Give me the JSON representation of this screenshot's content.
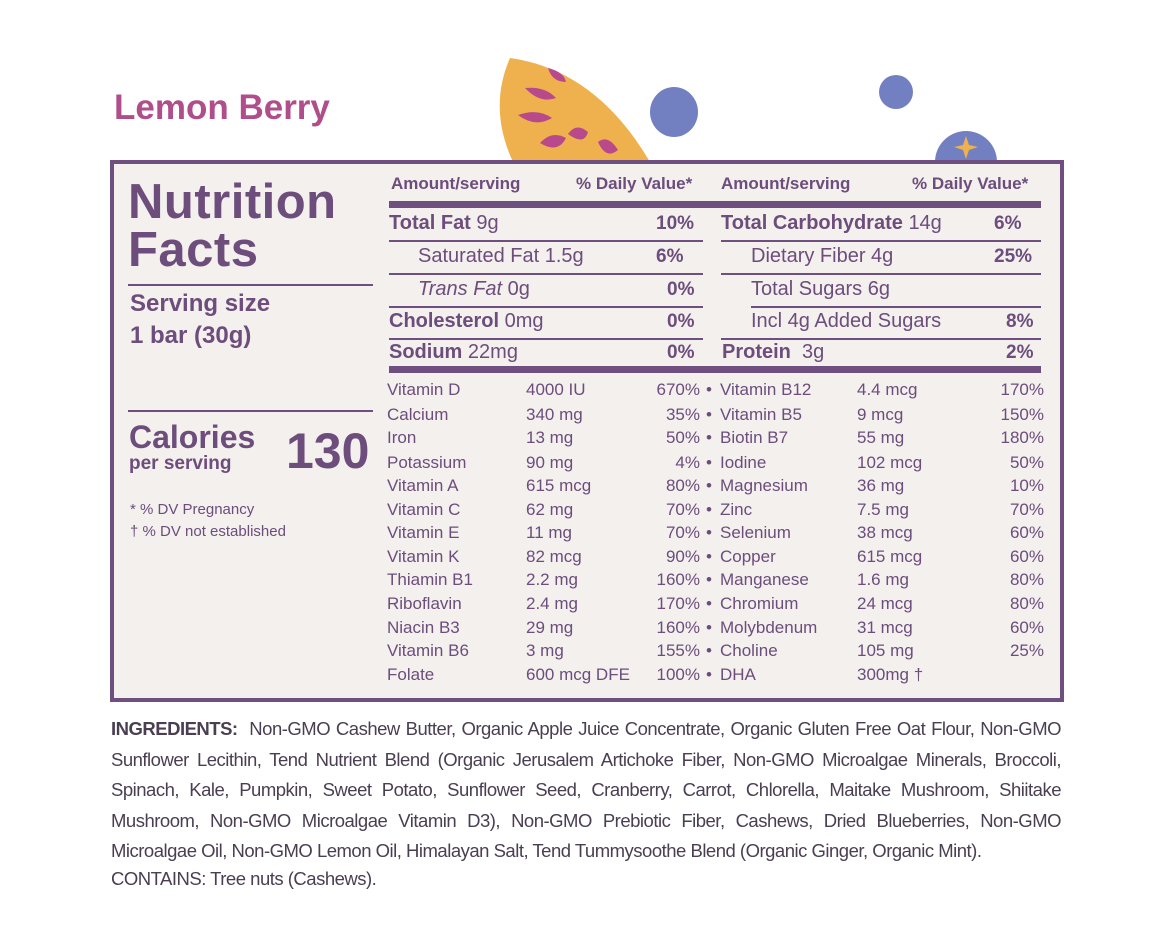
{
  "product_name": "Lemon Berry",
  "colors": {
    "accent": "#b04e8c",
    "frame": "#6f4f7f",
    "panel_bg": "#f3f0ee",
    "lemon": "#eeb14d",
    "berry": "#7280c2"
  },
  "label": {
    "title_line1": "Nutrition",
    "title_line2": "Facts",
    "serving_label": "Serving size",
    "serving_value": "1 bar (30g)",
    "calories_label": "Calories",
    "calories_sub": "per serving",
    "calories_value": "130",
    "notes": [
      "*  % DV Pregnancy",
      "†  % DV not established"
    ]
  },
  "columns": {
    "left_header_amount": "Amount/serving",
    "left_header_dv": "% Daily Value*",
    "right_header_amount": "Amount/serving",
    "right_header_dv": "% Daily Value*"
  },
  "nutrients_left": [
    {
      "name": "Total Fat",
      "amount": "9g",
      "dv": "10%"
    },
    {
      "name": "Saturated Fat",
      "amount": "1.5g",
      "dv": "6%"
    },
    {
      "name": "Trans Fat",
      "amount": "0g",
      "dv": "0%"
    },
    {
      "name": "Cholesterol",
      "amount": "0mg",
      "dv": "0%"
    },
    {
      "name": "Sodium",
      "amount": "22mg",
      "dv": "0%"
    }
  ],
  "nutrients_right": [
    {
      "name": "Total Carbohydrate",
      "amount": "14g",
      "dv": "6%"
    },
    {
      "name": "Dietary Fiber",
      "amount": "4g",
      "dv": "25%"
    },
    {
      "name": "Total Sugars",
      "amount": "6g",
      "dv": ""
    },
    {
      "name": "Incl 4g Added Sugars",
      "amount": "",
      "dv": "8%"
    },
    {
      "name": "Protein",
      "amount": "3g",
      "dv": "2%"
    }
  ],
  "vitamins_left": [
    {
      "name": "Vitamin D",
      "amount": "4000 IU",
      "dv": "670%"
    },
    {
      "name": "Calcium",
      "amount": "340 mg",
      "dv": "35%"
    },
    {
      "name": "Iron",
      "amount": "13 mg",
      "dv": "50%"
    },
    {
      "name": "Potassium",
      "amount": "90 mg",
      "dv": "4%"
    },
    {
      "name": "Vitamin A",
      "amount": "615 mcg",
      "dv": "80%"
    },
    {
      "name": "Vitamin C",
      "amount": "62 mg",
      "dv": "70%"
    },
    {
      "name": "Vitamin E",
      "amount": "11 mg",
      "dv": "70%"
    },
    {
      "name": "Vitamin K",
      "amount": "82 mcg",
      "dv": "90%"
    },
    {
      "name": "Thiamin B1",
      "amount": "2.2 mg",
      "dv": "160%"
    },
    {
      "name": "Riboflavin",
      "amount": "2.4 mg",
      "dv": "170%"
    },
    {
      "name": "Niacin B3",
      "amount": "29 mg",
      "dv": "160%"
    },
    {
      "name": "Vitamin B6",
      "amount": "3 mg",
      "dv": "155%"
    },
    {
      "name": "Folate",
      "amount": "600 mcg DFE",
      "dv": "100%"
    }
  ],
  "vitamins_right": [
    {
      "name": "Vitamin B12",
      "amount": "4.4 mcg",
      "dv": "170%"
    },
    {
      "name": "Vitamin  B5",
      "amount": "9 mcg",
      "dv": "150%"
    },
    {
      "name": "Biotin B7",
      "amount": "55 mg",
      "dv": "180%"
    },
    {
      "name": "Iodine",
      "amount": "102 mcg",
      "dv": "50%"
    },
    {
      "name": "Magnesium",
      "amount": "36 mg",
      "dv": "10%"
    },
    {
      "name": "Zinc",
      "amount": "7.5 mg",
      "dv": "70%"
    },
    {
      "name": "Selenium",
      "amount": "38 mcg",
      "dv": "60%"
    },
    {
      "name": "Copper",
      "amount": "615 mcg",
      "dv": "60%"
    },
    {
      "name": "Manganese",
      "amount": "1.6 mg",
      "dv": "80%"
    },
    {
      "name": "Chromium",
      "amount": "24 mcg",
      "dv": "80%"
    },
    {
      "name": "Molybdenum",
      "amount": "31 mcg",
      "dv": "60%"
    },
    {
      "name": "Choline",
      "amount": "105 mg",
      "dv": "25%"
    },
    {
      "name": "DHA",
      "amount": "300mg †",
      "dv": ""
    }
  ],
  "bullet": "•",
  "ingredients_label": "INGREDIENTS:",
  "ingredients_text": "Non-GMO Cashew Butter, Organic Apple Juice Concentrate,  Organic Gluten Free Oat Flour, Non-GMO Sunflower Lecithin, Tend Nutrient Blend (Organic Jerusalem Artichoke Fiber, Non-GMO Microalgae Minerals, Broccoli, Spinach, Kale, Pumpkin, Sweet Potato, Sunflower Seed, Cranberry, Carrot, Chlorella, Maitake Mushroom, Shiitake Mushroom, Non-GMO Microalgae Vitamin D3), Non-GMO Prebiotic Fiber, Cashews, Dried Blueberries, Non-GMO Microalgae Oil, Non-GMO Lemon Oil, Himalayan Salt, Tend Tummysoothe Blend (Organic Ginger, Organic Mint).",
  "contains_text": "CONTAINS: Tree nuts (Cashews)."
}
